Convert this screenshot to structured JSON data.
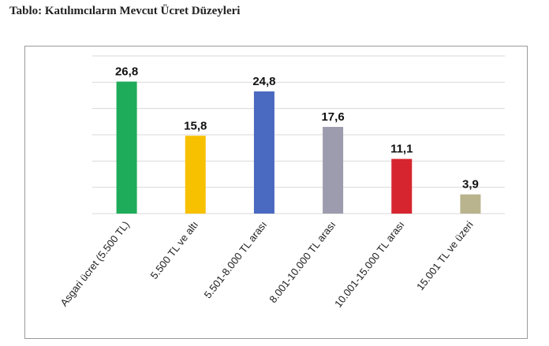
{
  "page": {
    "title": "Tablo: Katılımcıların Mevcut Ücret Düzeyleri"
  },
  "chart_data": {
    "type": "bar",
    "title": "",
    "xlabel": "",
    "ylabel": "",
    "ylim": [
      0,
      32
    ],
    "grid": true,
    "categories": [
      "Asgari ücret (5.500 TL)",
      "5.500 TL ve altı",
      "5.501-8.000 TL arası",
      "8.001-10.000 TL arası",
      "10.001-15.000 TL arası",
      "15.001 TL ve üzeri"
    ],
    "values": [
      26.8,
      15.8,
      24.8,
      17.6,
      11.1,
      3.9
    ],
    "value_labels": [
      "26,8",
      "15,8",
      "24,8",
      "17,6",
      "11,1",
      "3,9"
    ],
    "colors": [
      "#1fac5a",
      "#f7c100",
      "#4a69c0",
      "#9c9cae",
      "#d6252f",
      "#b9b48e"
    ],
    "grid_color": "#d9d9d9"
  }
}
